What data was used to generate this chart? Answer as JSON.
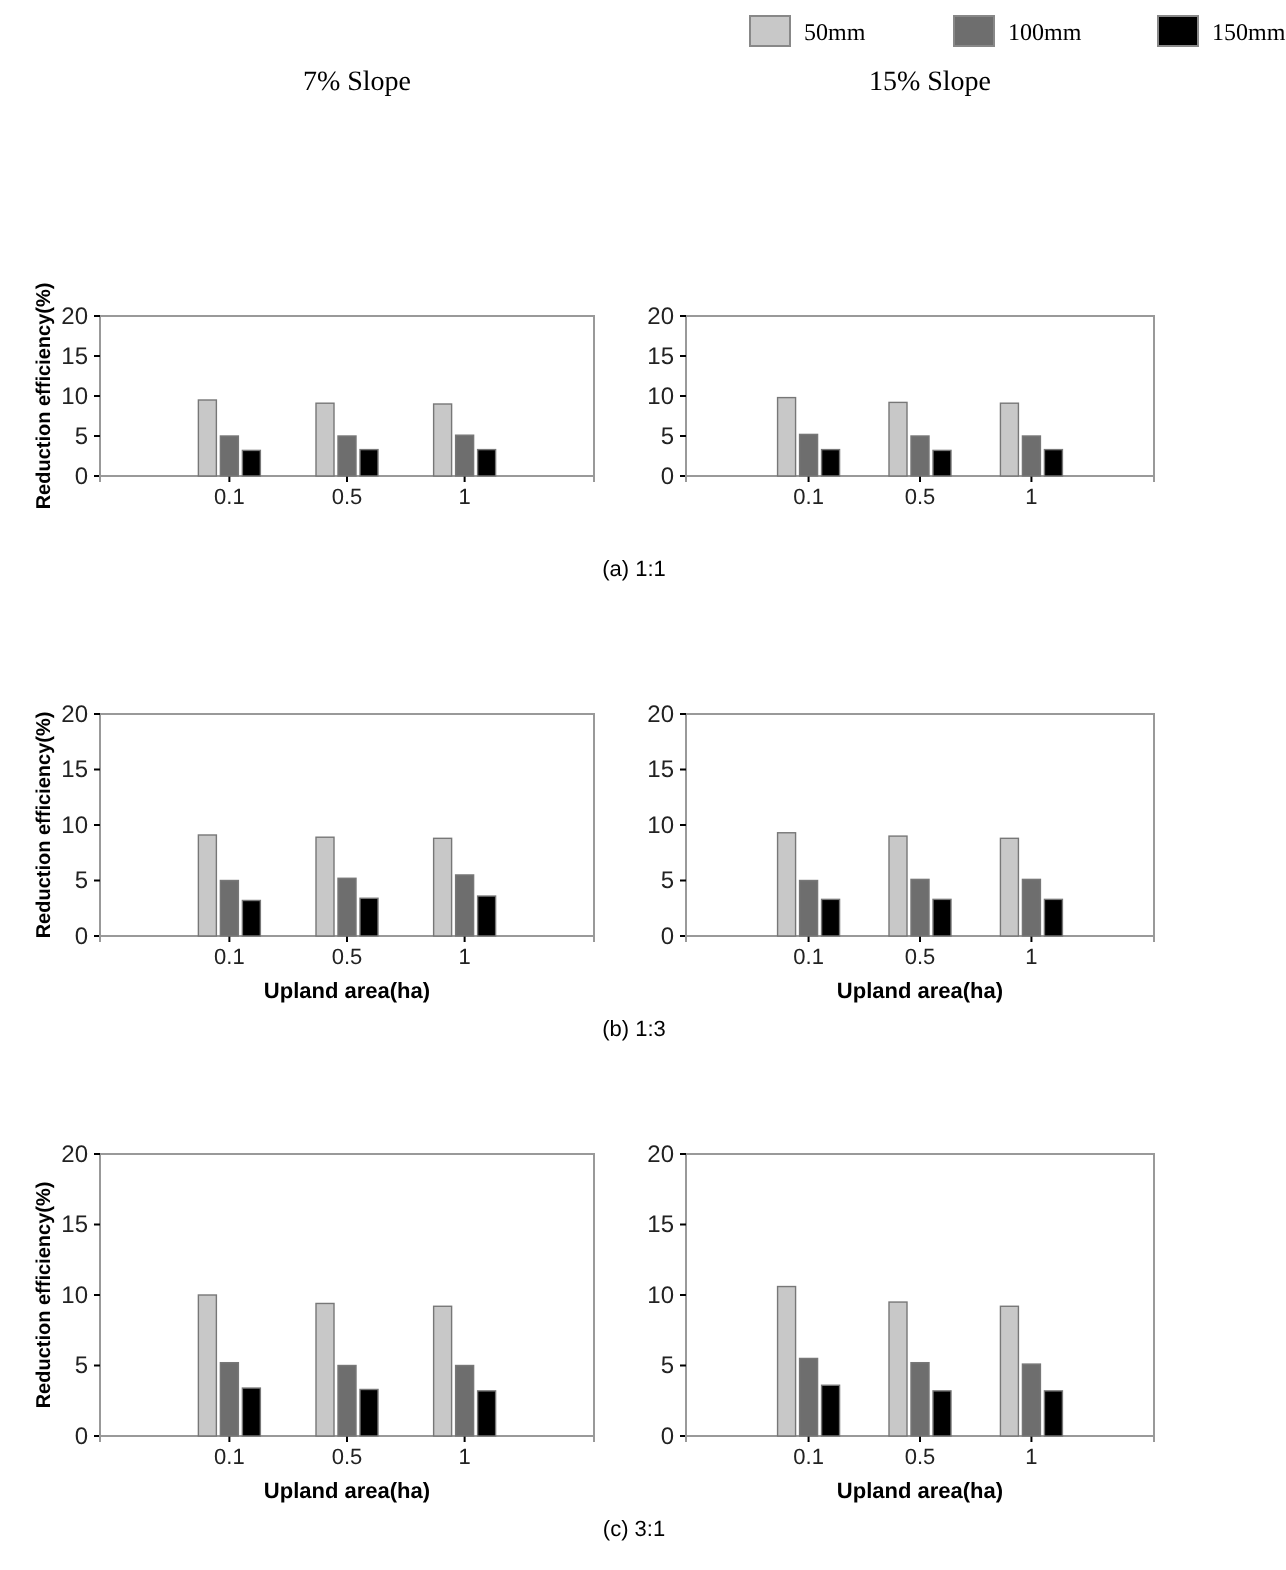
{
  "chart_data": [
    {
      "type": "bar",
      "title": "7% Slope",
      "ylabel": "Reduction efficiency(%)",
      "annotations": [
        "(a) 1:1"
      ],
      "categories": [
        "0.1",
        "0.5",
        "1"
      ],
      "ylim": [
        0,
        20
      ],
      "yticks": [
        0,
        5,
        10,
        15,
        20
      ],
      "series": [
        {
          "color": "#c8c8c8",
          "values": [
            9.5,
            9.1,
            9.0
          ]
        },
        {
          "color": "#6e6e6e",
          "values": [
            5.0,
            5.0,
            5.1
          ]
        },
        {
          "color": "#000000",
          "values": [
            3.2,
            3.3,
            3.3
          ]
        }
      ]
    },
    {
      "type": "bar",
      "title": "15% Slope",
      "legend": "top",
      "categories": [
        "0.1",
        "0.5",
        "1"
      ],
      "ylim": [
        0,
        20
      ],
      "yticks": [
        0,
        5,
        10,
        15,
        20
      ],
      "series": [
        {
          "name": "50mm",
          "color": "#c8c8c8",
          "values": [
            9.8,
            9.2,
            9.1
          ]
        },
        {
          "name": "100mm",
          "color": "#6e6e6e",
          "values": [
            5.2,
            5.0,
            5.0
          ]
        },
        {
          "name": "150mm",
          "color": "#000000",
          "values": [
            3.3,
            3.2,
            3.3
          ]
        }
      ]
    },
    {
      "type": "bar",
      "ylabel": "Reduction efficiency(%)",
      "xlabel": "Upland area(ha)",
      "annotations": [
        "(b) 1:3"
      ],
      "categories": [
        "0.1",
        "0.5",
        "1"
      ],
      "ylim": [
        0,
        20
      ],
      "yticks": [
        0,
        5,
        10,
        15,
        20
      ],
      "series": [
        {
          "color": "#c8c8c8",
          "values": [
            9.1,
            8.9,
            8.8
          ]
        },
        {
          "color": "#6e6e6e",
          "values": [
            5.0,
            5.2,
            5.5
          ]
        },
        {
          "color": "#000000",
          "values": [
            3.2,
            3.4,
            3.6
          ]
        }
      ]
    },
    {
      "type": "bar",
      "xlabel": "Upland area(ha)",
      "categories": [
        "0.1",
        "0.5",
        "1"
      ],
      "ylim": [
        0,
        20
      ],
      "yticks": [
        0,
        5,
        10,
        15,
        20
      ],
      "series": [
        {
          "color": "#c8c8c8",
          "values": [
            9.3,
            9.0,
            8.8
          ]
        },
        {
          "color": "#6e6e6e",
          "values": [
            5.0,
            5.1,
            5.1
          ]
        },
        {
          "color": "#000000",
          "values": [
            3.3,
            3.3,
            3.3
          ]
        }
      ]
    },
    {
      "type": "bar",
      "ylabel": "Reduction efficiency(%)",
      "xlabel": "Upland area(ha)",
      "annotations": [
        "(c) 3:1"
      ],
      "categories": [
        "0.1",
        "0.5",
        "1"
      ],
      "ylim": [
        0,
        20
      ],
      "yticks": [
        0,
        5,
        10,
        15,
        20
      ],
      "series": [
        {
          "color": "#c8c8c8",
          "values": [
            10.0,
            9.4,
            9.2
          ]
        },
        {
          "color": "#6e6e6e",
          "values": [
            5.2,
            5.0,
            5.0
          ]
        },
        {
          "color": "#000000",
          "values": [
            3.4,
            3.3,
            3.2
          ]
        }
      ]
    },
    {
      "type": "bar",
      "xlabel": "Upland area(ha)",
      "categories": [
        "0.1",
        "0.5",
        "1"
      ],
      "ylim": [
        0,
        20
      ],
      "yticks": [
        0,
        5,
        10,
        15,
        20
      ],
      "series": [
        {
          "color": "#c8c8c8",
          "values": [
            10.6,
            9.5,
            9.2
          ]
        },
        {
          "color": "#6e6e6e",
          "values": [
            5.5,
            5.2,
            5.1
          ]
        },
        {
          "color": "#000000",
          "values": [
            3.6,
            3.2,
            3.2
          ]
        }
      ]
    }
  ]
}
